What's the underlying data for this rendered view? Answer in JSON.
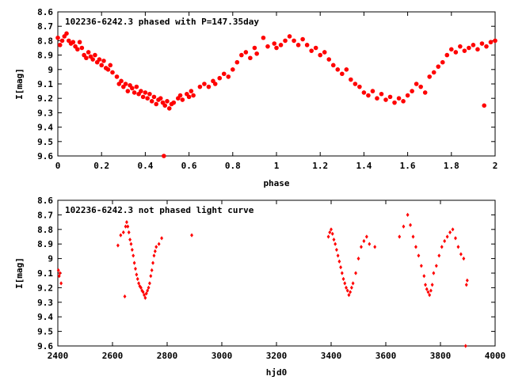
{
  "chart_data": [
    {
      "type": "scatter",
      "title": "102236-6242.3 phased with P=147.35day",
      "xlabel": "phase",
      "ylabel": "I[mag]",
      "xlim": [
        0,
        2
      ],
      "ylim": [
        9.6,
        8.6
      ],
      "y_inverted": true,
      "grid": false,
      "marker": "filled-circle",
      "color": "#ff0000",
      "xticks": [
        "0",
        "0.2",
        "0.4",
        "0.6",
        "0.8",
        "1",
        "1.2",
        "1.4",
        "1.6",
        "1.8",
        "2"
      ],
      "yticks": [
        "8.6",
        "8.7",
        "8.8",
        "8.9",
        "9",
        "9.1",
        "9.2",
        "9.3",
        "9.4",
        "9.5",
        "9.6"
      ],
      "points": [
        [
          0.0,
          8.78
        ],
        [
          0.01,
          8.83
        ],
        [
          0.02,
          8.8
        ],
        [
          0.03,
          8.77
        ],
        [
          0.04,
          8.75
        ],
        [
          0.05,
          8.8
        ],
        [
          0.06,
          8.82
        ],
        [
          0.07,
          8.81
        ],
        [
          0.08,
          8.84
        ],
        [
          0.09,
          8.86
        ],
        [
          0.1,
          8.81
        ],
        [
          0.11,
          8.85
        ],
        [
          0.12,
          8.9
        ],
        [
          0.13,
          8.92
        ],
        [
          0.14,
          8.88
        ],
        [
          0.15,
          8.91
        ],
        [
          0.16,
          8.93
        ],
        [
          0.17,
          8.9
        ],
        [
          0.18,
          8.95
        ],
        [
          0.19,
          8.93
        ],
        [
          0.2,
          8.97
        ],
        [
          0.21,
          8.94
        ],
        [
          0.22,
          8.99
        ],
        [
          0.23,
          9.0
        ],
        [
          0.24,
          8.97
        ],
        [
          0.25,
          9.02
        ],
        [
          0.27,
          9.05
        ],
        [
          0.28,
          9.1
        ],
        [
          0.29,
          9.08
        ],
        [
          0.3,
          9.12
        ],
        [
          0.31,
          9.1
        ],
        [
          0.32,
          9.15
        ],
        [
          0.33,
          9.11
        ],
        [
          0.34,
          9.13
        ],
        [
          0.35,
          9.16
        ],
        [
          0.36,
          9.12
        ],
        [
          0.37,
          9.17
        ],
        [
          0.38,
          9.15
        ],
        [
          0.39,
          9.19
        ],
        [
          0.4,
          9.16
        ],
        [
          0.41,
          9.2
        ],
        [
          0.42,
          9.17
        ],
        [
          0.43,
          9.22
        ],
        [
          0.44,
          9.19
        ],
        [
          0.45,
          9.24
        ],
        [
          0.46,
          9.21
        ],
        [
          0.47,
          9.2
        ],
        [
          0.48,
          9.23
        ],
        [
          0.485,
          9.6
        ],
        [
          0.49,
          9.25
        ],
        [
          0.5,
          9.22
        ],
        [
          0.51,
          9.27
        ],
        [
          0.52,
          9.24
        ],
        [
          0.53,
          9.23
        ],
        [
          0.55,
          9.2
        ],
        [
          0.56,
          9.18
        ],
        [
          0.57,
          9.21
        ],
        [
          0.59,
          9.17
        ],
        [
          0.6,
          9.19
        ],
        [
          0.61,
          9.15
        ],
        [
          0.62,
          9.18
        ],
        [
          0.65,
          9.12
        ],
        [
          0.67,
          9.1
        ],
        [
          0.69,
          9.12
        ],
        [
          0.71,
          9.08
        ],
        [
          0.72,
          9.1
        ],
        [
          0.74,
          9.06
        ],
        [
          0.76,
          9.03
        ],
        [
          0.78,
          9.05
        ],
        [
          0.8,
          9.0
        ],
        [
          0.82,
          8.95
        ],
        [
          0.84,
          8.9
        ],
        [
          0.86,
          8.88
        ],
        [
          0.88,
          8.92
        ],
        [
          0.9,
          8.85
        ],
        [
          0.91,
          8.89
        ],
        [
          0.94,
          8.78
        ],
        [
          0.96,
          8.84
        ],
        [
          0.99,
          8.82
        ],
        [
          1.0,
          8.85
        ],
        [
          1.02,
          8.83
        ],
        [
          1.04,
          8.8
        ],
        [
          1.06,
          8.77
        ],
        [
          1.08,
          8.8
        ],
        [
          1.1,
          8.83
        ],
        [
          1.12,
          8.79
        ],
        [
          1.14,
          8.83
        ],
        [
          1.16,
          8.87
        ],
        [
          1.18,
          8.85
        ],
        [
          1.2,
          8.9
        ],
        [
          1.22,
          8.88
        ],
        [
          1.24,
          8.93
        ],
        [
          1.26,
          8.97
        ],
        [
          1.28,
          9.0
        ],
        [
          1.3,
          9.03
        ],
        [
          1.32,
          9.0
        ],
        [
          1.34,
          9.07
        ],
        [
          1.36,
          9.1
        ],
        [
          1.38,
          9.12
        ],
        [
          1.4,
          9.16
        ],
        [
          1.42,
          9.18
        ],
        [
          1.44,
          9.15
        ],
        [
          1.46,
          9.2
        ],
        [
          1.48,
          9.17
        ],
        [
          1.5,
          9.21
        ],
        [
          1.52,
          9.19
        ],
        [
          1.54,
          9.23
        ],
        [
          1.56,
          9.2
        ],
        [
          1.58,
          9.22
        ],
        [
          1.6,
          9.18
        ],
        [
          1.62,
          9.15
        ],
        [
          1.64,
          9.1
        ],
        [
          1.66,
          9.12
        ],
        [
          1.68,
          9.16
        ],
        [
          1.7,
          9.05
        ],
        [
          1.72,
          9.02
        ],
        [
          1.74,
          8.98
        ],
        [
          1.76,
          8.95
        ],
        [
          1.78,
          8.9
        ],
        [
          1.8,
          8.86
        ],
        [
          1.82,
          8.88
        ],
        [
          1.84,
          8.84
        ],
        [
          1.86,
          8.87
        ],
        [
          1.88,
          8.85
        ],
        [
          1.9,
          8.83
        ],
        [
          1.92,
          8.86
        ],
        [
          1.94,
          8.82
        ],
        [
          1.95,
          9.25
        ],
        [
          1.96,
          8.84
        ],
        [
          1.98,
          8.81
        ],
        [
          2.0,
          8.8
        ]
      ]
    },
    {
      "type": "scatter",
      "title": "102236-6242.3 not phased light curve",
      "xlabel": "hjd0",
      "ylabel": "I[mag]",
      "xlim": [
        2400,
        4000
      ],
      "ylim": [
        9.6,
        8.6
      ],
      "y_inverted": true,
      "grid": false,
      "marker": "filled-diamond",
      "color": "#ff0000",
      "xticks": [
        "2400",
        "2600",
        "2800",
        "3000",
        "3200",
        "3400",
        "3600",
        "3800",
        "4000"
      ],
      "yticks": [
        "8.6",
        "8.7",
        "8.8",
        "8.9",
        "9",
        "9.1",
        "9.2",
        "9.3",
        "9.4",
        "9.5",
        "9.6"
      ],
      "points": [
        [
          2402,
          9.08
        ],
        [
          2405,
          9.12
        ],
        [
          2408,
          9.1
        ],
        [
          2412,
          9.17
        ],
        [
          2620,
          8.91
        ],
        [
          2630,
          8.84
        ],
        [
          2640,
          8.82
        ],
        [
          2645,
          9.26
        ],
        [
          2648,
          8.78
        ],
        [
          2652,
          8.75
        ],
        [
          2656,
          8.78
        ],
        [
          2660,
          8.82
        ],
        [
          2664,
          8.87
        ],
        [
          2668,
          8.9
        ],
        [
          2672,
          8.94
        ],
        [
          2676,
          8.98
        ],
        [
          2680,
          9.03
        ],
        [
          2684,
          9.07
        ],
        [
          2688,
          9.11
        ],
        [
          2692,
          9.14
        ],
        [
          2696,
          9.17
        ],
        [
          2700,
          9.19
        ],
        [
          2704,
          9.2
        ],
        [
          2708,
          9.22
        ],
        [
          2712,
          9.23
        ],
        [
          2716,
          9.25
        ],
        [
          2720,
          9.27
        ],
        [
          2724,
          9.24
        ],
        [
          2728,
          9.22
        ],
        [
          2732,
          9.2
        ],
        [
          2736,
          9.17
        ],
        [
          2740,
          9.12
        ],
        [
          2744,
          9.08
        ],
        [
          2748,
          9.03
        ],
        [
          2752,
          8.98
        ],
        [
          2756,
          8.95
        ],
        [
          2760,
          8.92
        ],
        [
          2770,
          8.9
        ],
        [
          2780,
          8.86
        ],
        [
          2890,
          8.84
        ],
        [
          3390,
          8.85
        ],
        [
          3395,
          8.82
        ],
        [
          3400,
          8.8
        ],
        [
          3405,
          8.83
        ],
        [
          3410,
          8.87
        ],
        [
          3415,
          8.9
        ],
        [
          3420,
          8.94
        ],
        [
          3425,
          8.98
        ],
        [
          3430,
          9.02
        ],
        [
          3435,
          9.06
        ],
        [
          3440,
          9.1
        ],
        [
          3445,
          9.14
        ],
        [
          3450,
          9.17
        ],
        [
          3455,
          9.2
        ],
        [
          3460,
          9.22
        ],
        [
          3465,
          9.25
        ],
        [
          3470,
          9.23
        ],
        [
          3475,
          9.2
        ],
        [
          3480,
          9.17
        ],
        [
          3490,
          9.1
        ],
        [
          3500,
          9.0
        ],
        [
          3510,
          8.92
        ],
        [
          3520,
          8.88
        ],
        [
          3530,
          8.85
        ],
        [
          3540,
          8.9
        ],
        [
          3560,
          8.92
        ],
        [
          3650,
          8.85
        ],
        [
          3665,
          8.78
        ],
        [
          3680,
          8.7
        ],
        [
          3690,
          8.77
        ],
        [
          3700,
          8.85
        ],
        [
          3710,
          8.92
        ],
        [
          3720,
          8.98
        ],
        [
          3730,
          9.05
        ],
        [
          3740,
          9.12
        ],
        [
          3745,
          9.18
        ],
        [
          3750,
          9.21
        ],
        [
          3755,
          9.23
        ],
        [
          3760,
          9.25
        ],
        [
          3765,
          9.22
        ],
        [
          3770,
          9.18
        ],
        [
          3775,
          9.1
        ],
        [
          3785,
          9.05
        ],
        [
          3795,
          8.98
        ],
        [
          3805,
          8.92
        ],
        [
          3815,
          8.88
        ],
        [
          3825,
          8.85
        ],
        [
          3835,
          8.82
        ],
        [
          3845,
          8.8
        ],
        [
          3855,
          8.86
        ],
        [
          3865,
          8.92
        ],
        [
          3875,
          8.97
        ],
        [
          3885,
          9.0
        ],
        [
          3892,
          9.6
        ],
        [
          3895,
          9.18
        ],
        [
          3898,
          9.15
        ]
      ]
    }
  ]
}
